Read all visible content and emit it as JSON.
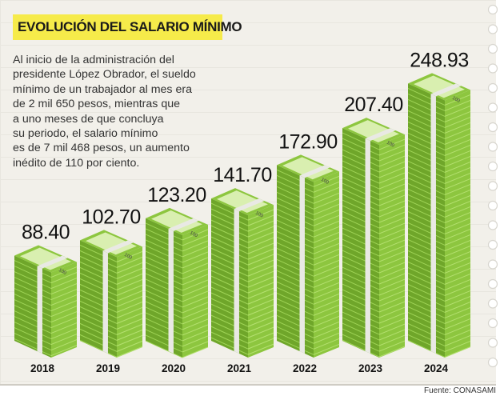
{
  "title": "EVOLUCIÓN DEL SALARIO MÍNIMO",
  "description_lines": [
    "Al inicio de la administración del",
    "presidente López Obrador, el sueldo",
    "mínimo de un trabajador al mes era",
    "de 2 mil 650 pesos, mientras que",
    "a uno meses de que concluya",
    "su periodo, el salario mínimo",
    "es de 7 mil 468 pesos, un aumento",
    "inédito de 110 por ciento."
  ],
  "source": "Fuente: CONASAMI",
  "colors": {
    "bill_light": "#8dc63f",
    "bill_dark": "#6fa62a",
    "bill_top": "#d9efb0",
    "band": "#e9e9e4",
    "highlight": "#f6eb4a"
  },
  "chart_data": {
    "type": "bar",
    "title": "EVOLUCIÓN DEL SALARIO MÍNIMO",
    "categories": [
      "2018",
      "2019",
      "2020",
      "2021",
      "2022",
      "2023",
      "2024"
    ],
    "values": [
      88.4,
      102.7,
      123.2,
      141.7,
      172.9,
      207.4,
      248.93
    ],
    "value_labels": [
      "88.40",
      "102.70",
      "123.20",
      "141.70",
      "172.90",
      "207.40",
      "248.93"
    ],
    "bill_label": "100",
    "xlabel": "",
    "ylabel": "",
    "ylim": [
      0,
      260
    ]
  }
}
